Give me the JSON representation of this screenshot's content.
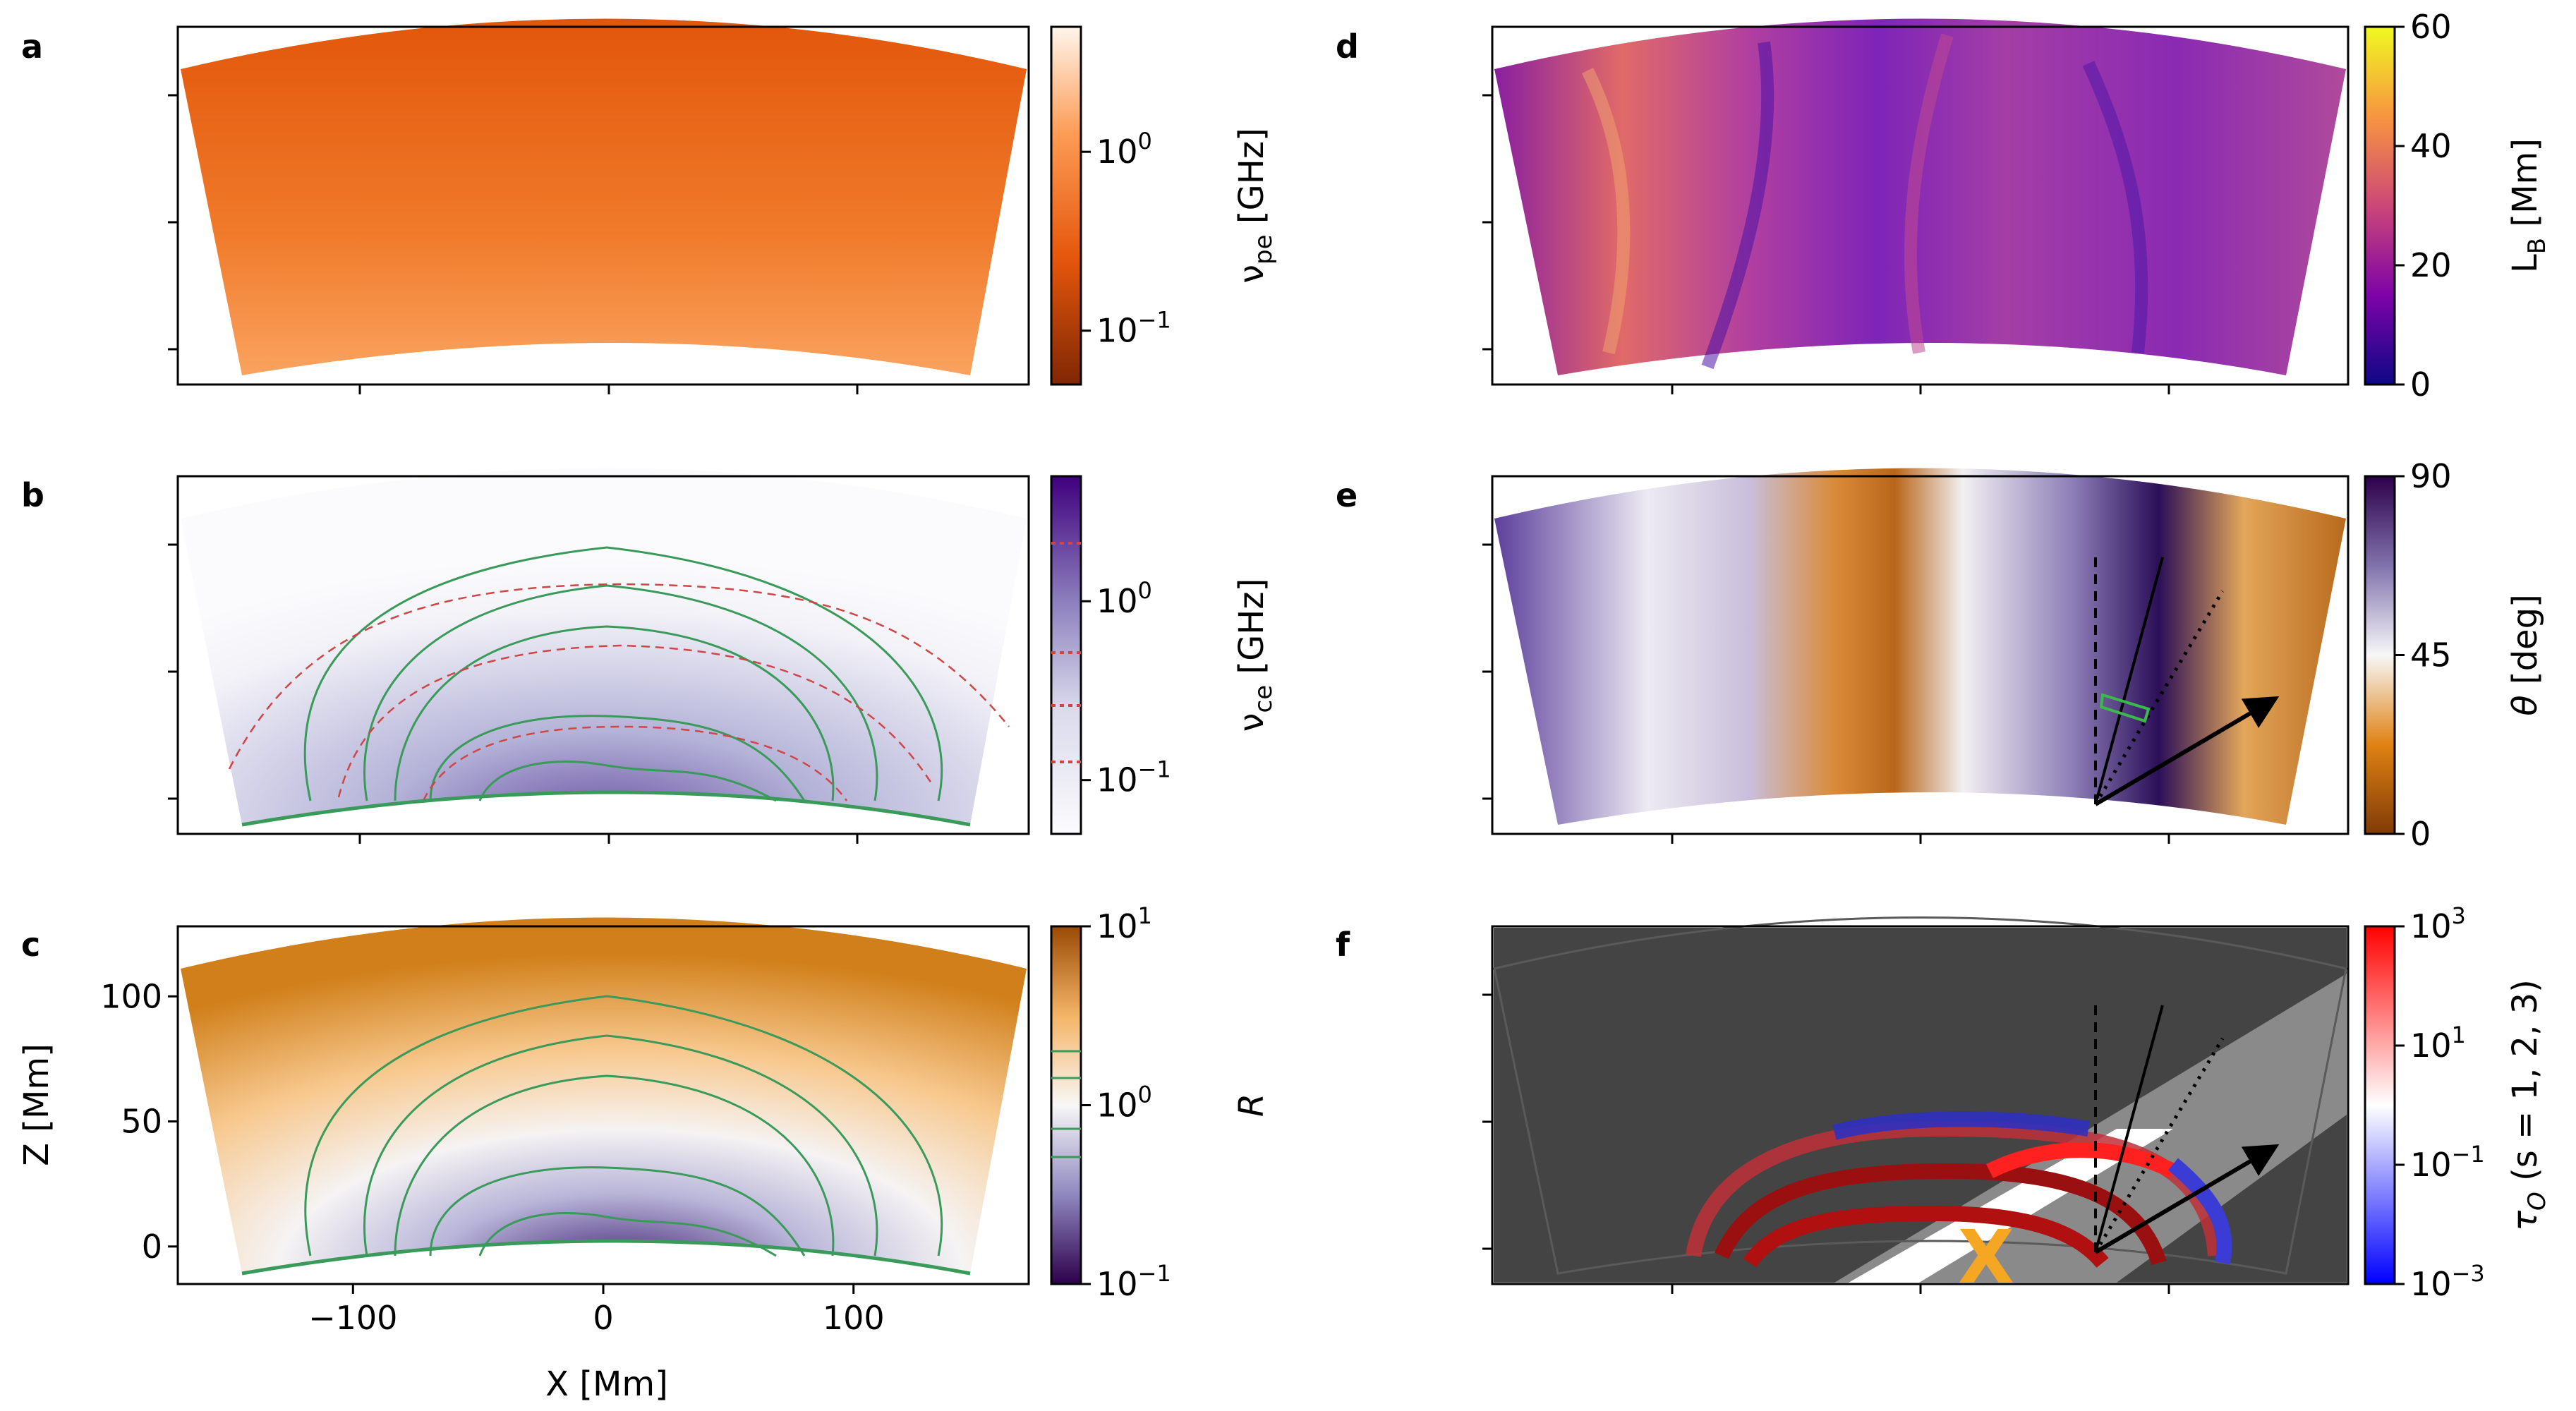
{
  "chart_data": [
    {
      "panel": "a",
      "type": "heatmap",
      "quantity": "plasma frequency",
      "colorbar": {
        "label": "ν_pe [GHz]",
        "label_base": "ν",
        "label_sub": "pe",
        "label_rest": " [GHz]",
        "scale": "log",
        "range": [
          0.05,
          5
        ],
        "tick_labels": [
          {
            "base": "10",
            "exp": "0",
            "value": 1
          },
          {
            "base": "10",
            "exp": "−1",
            "value": 0.1
          }
        ],
        "colormap": [
          "#7f2704",
          "#e5560c",
          "#fd8d3c",
          "#fff5eb"
        ]
      }
    },
    {
      "panel": "b",
      "type": "heatmap",
      "quantity": "electron cyclotron frequency",
      "overlays": [
        "green field-line contours",
        "red dashed contours"
      ],
      "colorbar": {
        "label": "ν_ce [GHz]",
        "label_base": "ν",
        "label_sub": "ce",
        "label_rest": " [GHz]",
        "scale": "log",
        "range": [
          0.05,
          5
        ],
        "tick_labels": [
          {
            "base": "10",
            "exp": "0",
            "value": 1
          },
          {
            "base": "10",
            "exp": "−1",
            "value": 0.1
          }
        ],
        "colormap": [
          "#fcfbfd",
          "#bcbddc",
          "#6a51a3",
          "#3f007d"
        ]
      }
    },
    {
      "panel": "c",
      "type": "heatmap",
      "quantity": "R",
      "colorbar": {
        "label": "R",
        "scale": "log",
        "range": [
          0.1,
          10
        ],
        "tick_labels": [
          {
            "base": "10",
            "exp": "1",
            "value": 10
          },
          {
            "base": "10",
            "exp": "0",
            "value": 1
          },
          {
            "base": "10",
            "exp": "−1",
            "value": 0.1
          }
        ],
        "colormap": [
          "#2d004b",
          "#b2abd2",
          "#f7f7f7",
          "#fdb863",
          "#b35806"
        ]
      },
      "xlabel": "X [Mm]",
      "ylabel": "Z [Mm]",
      "xlim": [
        -170,
        170
      ],
      "ylim": [
        -15,
        128
      ],
      "xticks": [
        {
          "value": -100,
          "label": "−100"
        },
        {
          "value": 0,
          "label": "0"
        },
        {
          "value": 100,
          "label": "100"
        }
      ],
      "yticks": [
        {
          "value": 0,
          "label": "0"
        },
        {
          "value": 50,
          "label": "50"
        },
        {
          "value": 100,
          "label": "100"
        }
      ]
    },
    {
      "panel": "d",
      "type": "heatmap",
      "quantity": "magnetic scale length",
      "colorbar": {
        "label": "L_B [Mm]",
        "label_base": "L",
        "label_sub": "B",
        "label_rest": " [Mm]",
        "scale": "linear",
        "range": [
          0,
          60
        ],
        "tick_labels": [
          {
            "text": "60",
            "value": 60
          },
          {
            "text": "40",
            "value": 40
          },
          {
            "text": "20",
            "value": 20
          },
          {
            "text": "0",
            "value": 0
          }
        ],
        "colormap": [
          "#0d0887",
          "#7e03a8",
          "#cc4778",
          "#f89540",
          "#f0f921"
        ]
      }
    },
    {
      "panel": "e",
      "type": "heatmap",
      "quantity": "angle θ",
      "overlays": [
        "dashed vertical line",
        "solid line",
        "dotted line",
        "arrow"
      ],
      "colorbar": {
        "label": "θ [deg]",
        "label_base": "θ",
        "label_rest": " [deg]",
        "scale": "linear",
        "range": [
          0,
          90
        ],
        "tick_labels": [
          {
            "text": "90",
            "value": 90
          },
          {
            "text": "45",
            "value": 45
          },
          {
            "text": "0",
            "value": 0
          }
        ],
        "colormap": [
          "#7f3b08",
          "#e08214",
          "#f7f7f7",
          "#8073ac",
          "#2d004b"
        ]
      }
    },
    {
      "panel": "f",
      "type": "heatmap",
      "quantity": "optical depth τ_O for harmonics s = 1, 2, 3",
      "marker": "X",
      "colorbar": {
        "label": "τ_O (s = 1, 2, 3)",
        "label_base": "τ",
        "label_sub": "O",
        "label_rest": " (s = 1, 2, 3)",
        "scale": "log",
        "range": [
          0.001,
          1000
        ],
        "tick_labels": [
          {
            "base": "10",
            "exp": "3",
            "value": 1000
          },
          {
            "base": "10",
            "exp": "1",
            "value": 10
          },
          {
            "base": "10",
            "exp": "−1",
            "value": 0.1
          },
          {
            "base": "10",
            "exp": "−3",
            "value": 0.001
          }
        ],
        "colormap": [
          "#0000ff",
          "#ffffff",
          "#ff0000"
        ]
      }
    }
  ]
}
